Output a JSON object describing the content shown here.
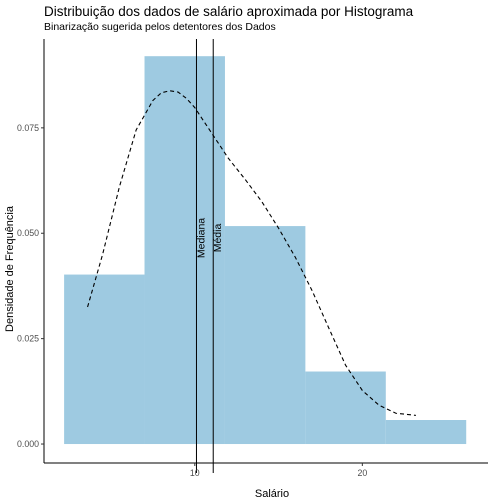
{
  "chart_data": {
    "type": "bar",
    "title": "Distribuição dos dados de salário aproximada por Histograma",
    "subtitle": "Binarização sugerida pelos detentores dos Dados",
    "xlabel": "Salário",
    "ylabel": "Densidade de Frequência",
    "xlim": [
      1.0,
      27.5
    ],
    "ylim": [
      -0.0045,
      0.0975
    ],
    "x_ticks": [
      10,
      20
    ],
    "x_tick_labels": [
      "10",
      "20"
    ],
    "y_ticks": [
      0.0,
      0.025,
      0.05,
      0.075
    ],
    "y_tick_labels": [
      "0.000",
      "0.025",
      "0.050",
      "0.075"
    ],
    "grid": false,
    "bar_color": "#9ecae1",
    "bins": [
      {
        "x0": 2.2,
        "x1": 7.0,
        "density": 0.0402
      },
      {
        "x0": 7.0,
        "x1": 11.8,
        "density": 0.092
      },
      {
        "x0": 11.8,
        "x1": 16.6,
        "density": 0.0517
      },
      {
        "x0": 16.6,
        "x1": 21.4,
        "density": 0.0172
      },
      {
        "x0": 21.4,
        "x1": 26.2,
        "density": 0.0057
      }
    ],
    "density_curve": {
      "style": "dashed",
      "x": [
        3.6,
        4.5,
        5.5,
        6.5,
        7.5,
        8.0,
        8.5,
        9.0,
        9.5,
        10.0,
        11.0,
        12.0,
        13.0,
        14.0,
        15.0,
        16.0,
        17.0,
        18.0,
        19.0,
        20.0,
        21.0,
        22.0,
        23.2
      ],
      "y": [
        0.0325,
        0.045,
        0.061,
        0.0745,
        0.0815,
        0.0833,
        0.0838,
        0.0835,
        0.082,
        0.0798,
        0.0738,
        0.0678,
        0.0628,
        0.0575,
        0.0512,
        0.0443,
        0.0364,
        0.0275,
        0.0187,
        0.0127,
        0.0092,
        0.0073,
        0.0068
      ]
    },
    "vertical_lines": [
      {
        "label": "Mediana",
        "x": 10.1
      },
      {
        "label": "Média",
        "x": 11.1
      }
    ]
  }
}
